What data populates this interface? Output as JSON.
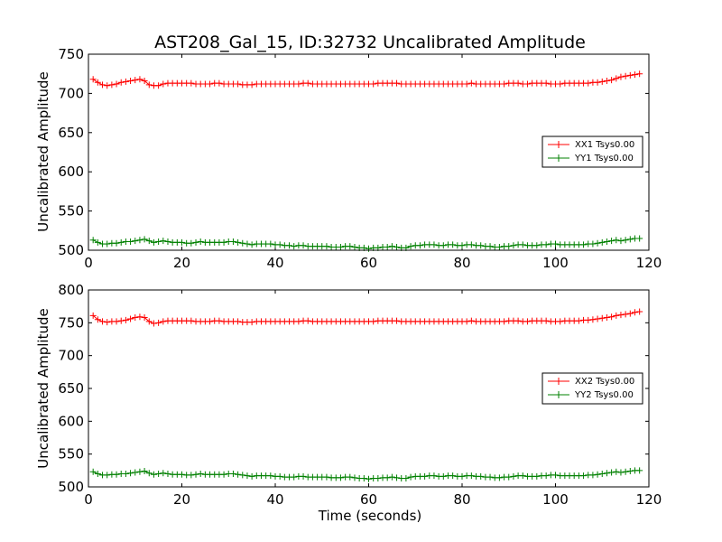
{
  "chart_data": [
    {
      "type": "line",
      "title": "AST208_Gal_15, ID:32732 Uncalibrated Amplitude",
      "xlabel": "",
      "ylabel": "Uncalibrated Amplitude",
      "xlim": [
        0,
        120
      ],
      "ylim": [
        500,
        750
      ],
      "xticks": [
        "0",
        "20",
        "40",
        "60",
        "80",
        "100",
        "120"
      ],
      "yticks": [
        "500",
        "550",
        "600",
        "650",
        "700",
        "750"
      ],
      "legend_position": "center-right",
      "x": [
        1,
        2,
        3,
        4,
        5,
        6,
        7,
        8,
        9,
        10,
        11,
        12,
        13,
        14,
        15,
        16,
        17,
        18,
        19,
        20,
        21,
        22,
        23,
        24,
        25,
        26,
        27,
        28,
        29,
        30,
        31,
        32,
        33,
        34,
        35,
        36,
        37,
        38,
        39,
        40,
        41,
        42,
        43,
        44,
        45,
        46,
        47,
        48,
        49,
        50,
        51,
        52,
        53,
        54,
        55,
        56,
        57,
        58,
        59,
        60,
        61,
        62,
        63,
        64,
        65,
        66,
        67,
        68,
        69,
        70,
        71,
        72,
        73,
        74,
        75,
        76,
        77,
        78,
        79,
        80,
        81,
        82,
        83,
        84,
        85,
        86,
        87,
        88,
        89,
        90,
        91,
        92,
        93,
        94,
        95,
        96,
        97,
        98,
        99,
        100,
        101,
        102,
        103,
        104,
        105,
        106,
        107,
        108,
        109,
        110,
        111,
        112,
        113,
        114,
        115,
        116,
        117,
        118
      ],
      "series": [
        {
          "name": "XX1 Tsys0.00",
          "color": "#ff0000",
          "values": [
            718,
            714,
            711,
            710,
            711,
            712,
            714,
            715,
            716,
            717,
            718,
            716,
            711,
            710,
            710,
            712,
            713,
            713,
            713,
            713,
            713,
            713,
            712,
            712,
            712,
            712,
            713,
            713,
            712,
            712,
            712,
            712,
            711,
            711,
            711,
            712,
            712,
            712,
            712,
            712,
            712,
            712,
            712,
            712,
            712,
            713,
            713,
            712,
            712,
            712,
            712,
            712,
            712,
            712,
            712,
            712,
            712,
            712,
            712,
            712,
            712,
            713,
            713,
            713,
            713,
            713,
            712,
            712,
            712,
            712,
            712,
            712,
            712,
            712,
            712,
            712,
            712,
            712,
            712,
            712,
            712,
            713,
            712,
            712,
            712,
            712,
            712,
            712,
            712,
            713,
            713,
            713,
            712,
            712,
            713,
            713,
            713,
            713,
            712,
            712,
            712,
            713,
            713,
            713,
            713,
            713,
            713,
            714,
            714,
            715,
            716,
            717,
            719,
            721,
            722,
            723,
            724,
            725
          ]
        },
        {
          "name": "YY1 Tsys0.00",
          "color": "#008000",
          "values": [
            513,
            510,
            508,
            508,
            509,
            509,
            510,
            511,
            511,
            512,
            513,
            514,
            512,
            510,
            511,
            512,
            511,
            510,
            510,
            510,
            509,
            509,
            510,
            511,
            510,
            510,
            510,
            510,
            510,
            511,
            511,
            510,
            509,
            508,
            507,
            508,
            508,
            508,
            508,
            507,
            507,
            506,
            506,
            505,
            506,
            506,
            505,
            505,
            505,
            505,
            505,
            504,
            504,
            504,
            505,
            505,
            504,
            503,
            503,
            502,
            503,
            503,
            504,
            504,
            505,
            504,
            503,
            503,
            505,
            506,
            506,
            507,
            507,
            507,
            506,
            506,
            507,
            507,
            506,
            506,
            507,
            507,
            506,
            506,
            505,
            505,
            504,
            504,
            505,
            505,
            506,
            507,
            507,
            506,
            506,
            506,
            507,
            507,
            508,
            508,
            507,
            507,
            507,
            507,
            507,
            507,
            508,
            508,
            509,
            510,
            511,
            512,
            513,
            512,
            513,
            514,
            515,
            515
          ]
        }
      ]
    },
    {
      "type": "line",
      "title": "",
      "xlabel": "Time (seconds)",
      "ylabel": "Uncalibrated Amplitude",
      "xlim": [
        0,
        120
      ],
      "ylim": [
        500,
        800
      ],
      "xticks": [
        "0",
        "20",
        "40",
        "60",
        "80",
        "100",
        "120"
      ],
      "yticks": [
        "500",
        "550",
        "600",
        "650",
        "700",
        "750",
        "800"
      ],
      "legend_position": "center-right",
      "x": [
        1,
        2,
        3,
        4,
        5,
        6,
        7,
        8,
        9,
        10,
        11,
        12,
        13,
        14,
        15,
        16,
        17,
        18,
        19,
        20,
        21,
        22,
        23,
        24,
        25,
        26,
        27,
        28,
        29,
        30,
        31,
        32,
        33,
        34,
        35,
        36,
        37,
        38,
        39,
        40,
        41,
        42,
        43,
        44,
        45,
        46,
        47,
        48,
        49,
        50,
        51,
        52,
        53,
        54,
        55,
        56,
        57,
        58,
        59,
        60,
        61,
        62,
        63,
        64,
        65,
        66,
        67,
        68,
        69,
        70,
        71,
        72,
        73,
        74,
        75,
        76,
        77,
        78,
        79,
        80,
        81,
        82,
        83,
        84,
        85,
        86,
        87,
        88,
        89,
        90,
        91,
        92,
        93,
        94,
        95,
        96,
        97,
        98,
        99,
        100,
        101,
        102,
        103,
        104,
        105,
        106,
        107,
        108,
        109,
        110,
        111,
        112,
        113,
        114,
        115,
        116,
        117,
        118
      ],
      "series": [
        {
          "name": "XX2 Tsys0.00",
          "color": "#ff0000",
          "values": [
            761,
            755,
            752,
            751,
            752,
            752,
            753,
            754,
            756,
            758,
            759,
            758,
            752,
            749,
            750,
            752,
            753,
            753,
            753,
            753,
            753,
            753,
            752,
            752,
            752,
            752,
            753,
            753,
            752,
            752,
            752,
            752,
            751,
            751,
            751,
            752,
            752,
            752,
            752,
            752,
            752,
            752,
            752,
            752,
            752,
            753,
            753,
            752,
            752,
            752,
            752,
            752,
            752,
            752,
            752,
            752,
            752,
            752,
            752,
            752,
            752,
            753,
            753,
            753,
            753,
            753,
            752,
            752,
            752,
            752,
            752,
            752,
            752,
            752,
            752,
            752,
            752,
            752,
            752,
            752,
            752,
            753,
            752,
            752,
            752,
            752,
            752,
            752,
            752,
            753,
            753,
            753,
            752,
            752,
            753,
            753,
            753,
            753,
            752,
            752,
            752,
            753,
            753,
            753,
            753,
            754,
            754,
            755,
            756,
            757,
            758,
            759,
            761,
            762,
            763,
            764,
            766,
            767
          ]
        },
        {
          "name": "YY2 Tsys0.00",
          "color": "#008000",
          "values": [
            523,
            520,
            518,
            518,
            519,
            519,
            520,
            520,
            521,
            522,
            523,
            524,
            521,
            519,
            520,
            521,
            520,
            519,
            519,
            519,
            518,
            518,
            519,
            520,
            519,
            519,
            519,
            519,
            519,
            520,
            520,
            519,
            518,
            517,
            516,
            517,
            517,
            517,
            517,
            516,
            516,
            515,
            515,
            515,
            516,
            516,
            515,
            515,
            515,
            515,
            515,
            514,
            514,
            514,
            515,
            515,
            514,
            513,
            513,
            512,
            513,
            513,
            514,
            514,
            515,
            514,
            513,
            513,
            515,
            516,
            516,
            516,
            517,
            517,
            516,
            516,
            517,
            517,
            516,
            516,
            517,
            517,
            516,
            516,
            515,
            515,
            514,
            514,
            515,
            515,
            516,
            517,
            517,
            516,
            516,
            516,
            517,
            517,
            518,
            518,
            517,
            517,
            517,
            517,
            517,
            517,
            518,
            518,
            519,
            520,
            521,
            522,
            523,
            522,
            523,
            524,
            525,
            525
          ]
        }
      ]
    }
  ]
}
